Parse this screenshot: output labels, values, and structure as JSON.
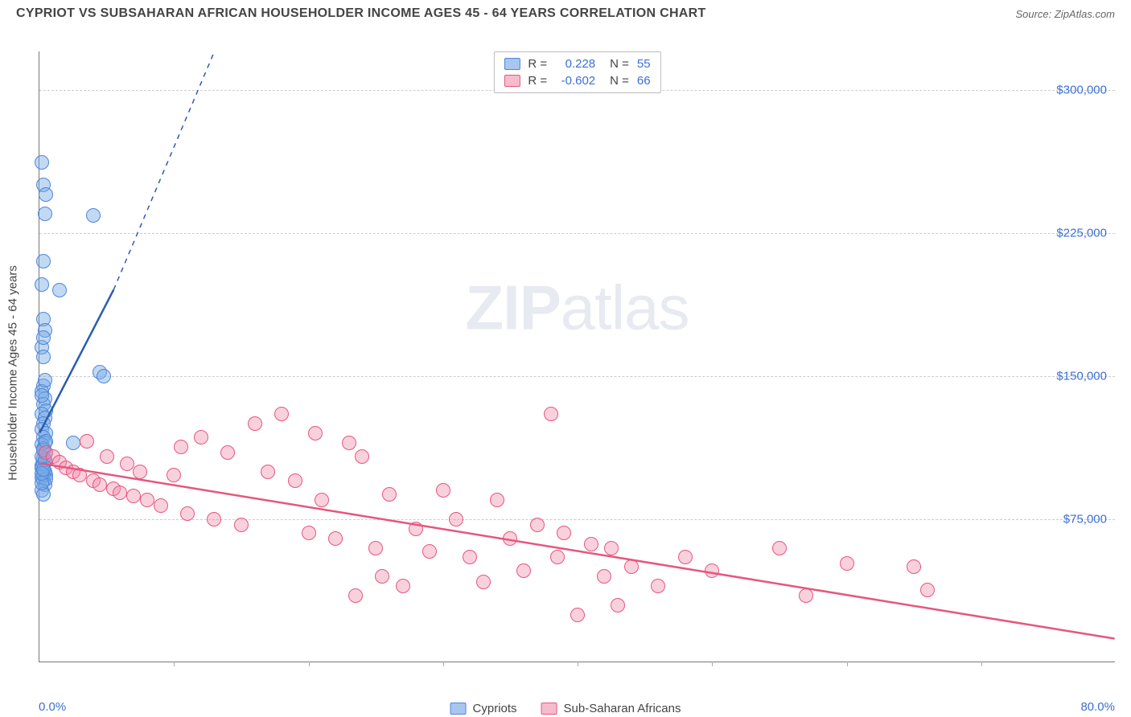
{
  "header": {
    "title": "CYPRIOT VS SUBSAHARAN AFRICAN HOUSEHOLDER INCOME AGES 45 - 64 YEARS CORRELATION CHART",
    "source": "Source: ZipAtlas.com"
  },
  "chart": {
    "type": "scatter",
    "y_axis_label": "Householder Income Ages 45 - 64 years",
    "x_start": "0.0%",
    "x_end": "80.0%",
    "xlim": [
      0,
      80
    ],
    "ylim": [
      0,
      320000
    ],
    "background_color": "#ffffff",
    "grid_color": "#cccccc",
    "axis_color": "#777777",
    "tick_label_color": "#3b6fd6",
    "y_ticks": [
      {
        "v": 75000,
        "label": "$75,000"
      },
      {
        "v": 150000,
        "label": "$150,000"
      },
      {
        "v": 225000,
        "label": "$225,000"
      },
      {
        "v": 300000,
        "label": "$300,000"
      }
    ],
    "x_ticks": [
      10,
      20,
      30,
      40,
      50,
      60,
      70
    ],
    "watermark": {
      "bold": "ZIP",
      "rest": "atlas"
    },
    "legend_top": [
      {
        "swatch_fill": "#a8c6ef",
        "swatch_border": "#4f86d8",
        "r_label": "R =",
        "r_val": "0.228",
        "n_label": "N =",
        "n_val": "55"
      },
      {
        "swatch_fill": "#f6bccd",
        "swatch_border": "#e6567e",
        "r_label": "R =",
        "r_val": "-0.602",
        "n_label": "N =",
        "n_val": "66"
      }
    ],
    "legend_bottom": [
      {
        "swatch_fill": "#a8c6ef",
        "swatch_border": "#4f86d8",
        "label": "Cypriots"
      },
      {
        "swatch_fill": "#f6bccd",
        "swatch_border": "#e6567e",
        "label": "Sub-Saharan Africans"
      }
    ],
    "series": [
      {
        "name": "Cypriots",
        "point_fill": "rgba(120,170,230,0.45)",
        "point_stroke": "#4f86d8",
        "point_radius": 9,
        "trend": {
          "x1": 0,
          "y1": 120000,
          "x2": 5.5,
          "y2": 195000,
          "dash_x2": 13,
          "dash_y2": 320000,
          "color": "#2a5db0",
          "width": 2.5
        },
        "points": [
          [
            0.2,
            262000
          ],
          [
            0.3,
            250000
          ],
          [
            0.5,
            245000
          ],
          [
            0.4,
            235000
          ],
          [
            4.0,
            234000
          ],
          [
            0.3,
            210000
          ],
          [
            0.2,
            198000
          ],
          [
            1.5,
            195000
          ],
          [
            0.3,
            180000
          ],
          [
            0.4,
            174000
          ],
          [
            0.2,
            165000
          ],
          [
            0.3,
            160000
          ],
          [
            4.5,
            152000
          ],
          [
            4.8,
            150000
          ],
          [
            0.3,
            145000
          ],
          [
            0.2,
            142000
          ],
          [
            0.4,
            138000
          ],
          [
            0.3,
            135000
          ],
          [
            0.5,
            132000
          ],
          [
            0.2,
            130000
          ],
          [
            0.4,
            128000
          ],
          [
            0.3,
            125000
          ],
          [
            0.2,
            122000
          ],
          [
            0.5,
            120000
          ],
          [
            0.3,
            118000
          ],
          [
            0.4,
            115000
          ],
          [
            0.2,
            114000
          ],
          [
            0.3,
            112000
          ],
          [
            0.5,
            110000
          ],
          [
            2.5,
            115000
          ],
          [
            0.3,
            107000
          ],
          [
            0.4,
            105000
          ],
          [
            0.2,
            103000
          ],
          [
            0.3,
            100000
          ],
          [
            0.5,
            98000
          ],
          [
            0.2,
            97000
          ],
          [
            0.3,
            95000
          ],
          [
            0.4,
            93000
          ],
          [
            0.2,
            90000
          ],
          [
            0.3,
            88000
          ],
          [
            0.2,
            102000
          ],
          [
            0.4,
            100000
          ],
          [
            0.3,
            98000
          ],
          [
            0.5,
            96000
          ],
          [
            0.2,
            94000
          ],
          [
            0.3,
            104000
          ],
          [
            0.2,
            108000
          ],
          [
            0.4,
            106000
          ],
          [
            0.3,
            111000
          ],
          [
            0.5,
            116000
          ],
          [
            0.2,
            99000
          ],
          [
            0.3,
            101000
          ],
          [
            0.2,
            140000
          ],
          [
            0.4,
            148000
          ],
          [
            0.3,
            170000
          ]
        ]
      },
      {
        "name": "Sub-Saharan Africans",
        "point_fill": "rgba(240,140,170,0.40)",
        "point_stroke": "#e6567e",
        "point_radius": 9,
        "trend": {
          "x1": 0,
          "y1": 104000,
          "x2": 80,
          "y2": 12000,
          "color": "#e6567e",
          "width": 2.5
        },
        "points": [
          [
            0.5,
            110000
          ],
          [
            1.0,
            108000
          ],
          [
            1.5,
            105000
          ],
          [
            2.0,
            102000
          ],
          [
            2.5,
            100000
          ],
          [
            3.0,
            98000
          ],
          [
            3.5,
            116000
          ],
          [
            4.0,
            95000
          ],
          [
            4.5,
            93000
          ],
          [
            5.0,
            108000
          ],
          [
            5.5,
            91000
          ],
          [
            6.0,
            89000
          ],
          [
            6.5,
            104000
          ],
          [
            7.0,
            87000
          ],
          [
            7.5,
            100000
          ],
          [
            8.0,
            85000
          ],
          [
            9.0,
            82000
          ],
          [
            10.0,
            98000
          ],
          [
            10.5,
            113000
          ],
          [
            11.0,
            78000
          ],
          [
            12.0,
            118000
          ],
          [
            13.0,
            75000
          ],
          [
            14.0,
            110000
          ],
          [
            15.0,
            72000
          ],
          [
            16.0,
            125000
          ],
          [
            17.0,
            100000
          ],
          [
            18.0,
            130000
          ],
          [
            19.0,
            95000
          ],
          [
            20.0,
            68000
          ],
          [
            20.5,
            120000
          ],
          [
            21.0,
            85000
          ],
          [
            22.0,
            65000
          ],
          [
            23.0,
            115000
          ],
          [
            23.5,
            35000
          ],
          [
            24.0,
            108000
          ],
          [
            25.0,
            60000
          ],
          [
            25.5,
            45000
          ],
          [
            26.0,
            88000
          ],
          [
            27.0,
            40000
          ],
          [
            28.0,
            70000
          ],
          [
            29.0,
            58000
          ],
          [
            30.0,
            90000
          ],
          [
            31.0,
            75000
          ],
          [
            32.0,
            55000
          ],
          [
            33.0,
            42000
          ],
          [
            34.0,
            85000
          ],
          [
            35.0,
            65000
          ],
          [
            36.0,
            48000
          ],
          [
            37.0,
            72000
          ],
          [
            38.0,
            130000
          ],
          [
            38.5,
            55000
          ],
          [
            39.0,
            68000
          ],
          [
            40.0,
            25000
          ],
          [
            41.0,
            62000
          ],
          [
            42.0,
            45000
          ],
          [
            42.5,
            60000
          ],
          [
            43.0,
            30000
          ],
          [
            44.0,
            50000
          ],
          [
            46.0,
            40000
          ],
          [
            48.0,
            55000
          ],
          [
            50.0,
            48000
          ],
          [
            55.0,
            60000
          ],
          [
            57.0,
            35000
          ],
          [
            60.0,
            52000
          ],
          [
            65.0,
            50000
          ],
          [
            66.0,
            38000
          ]
        ]
      }
    ]
  }
}
